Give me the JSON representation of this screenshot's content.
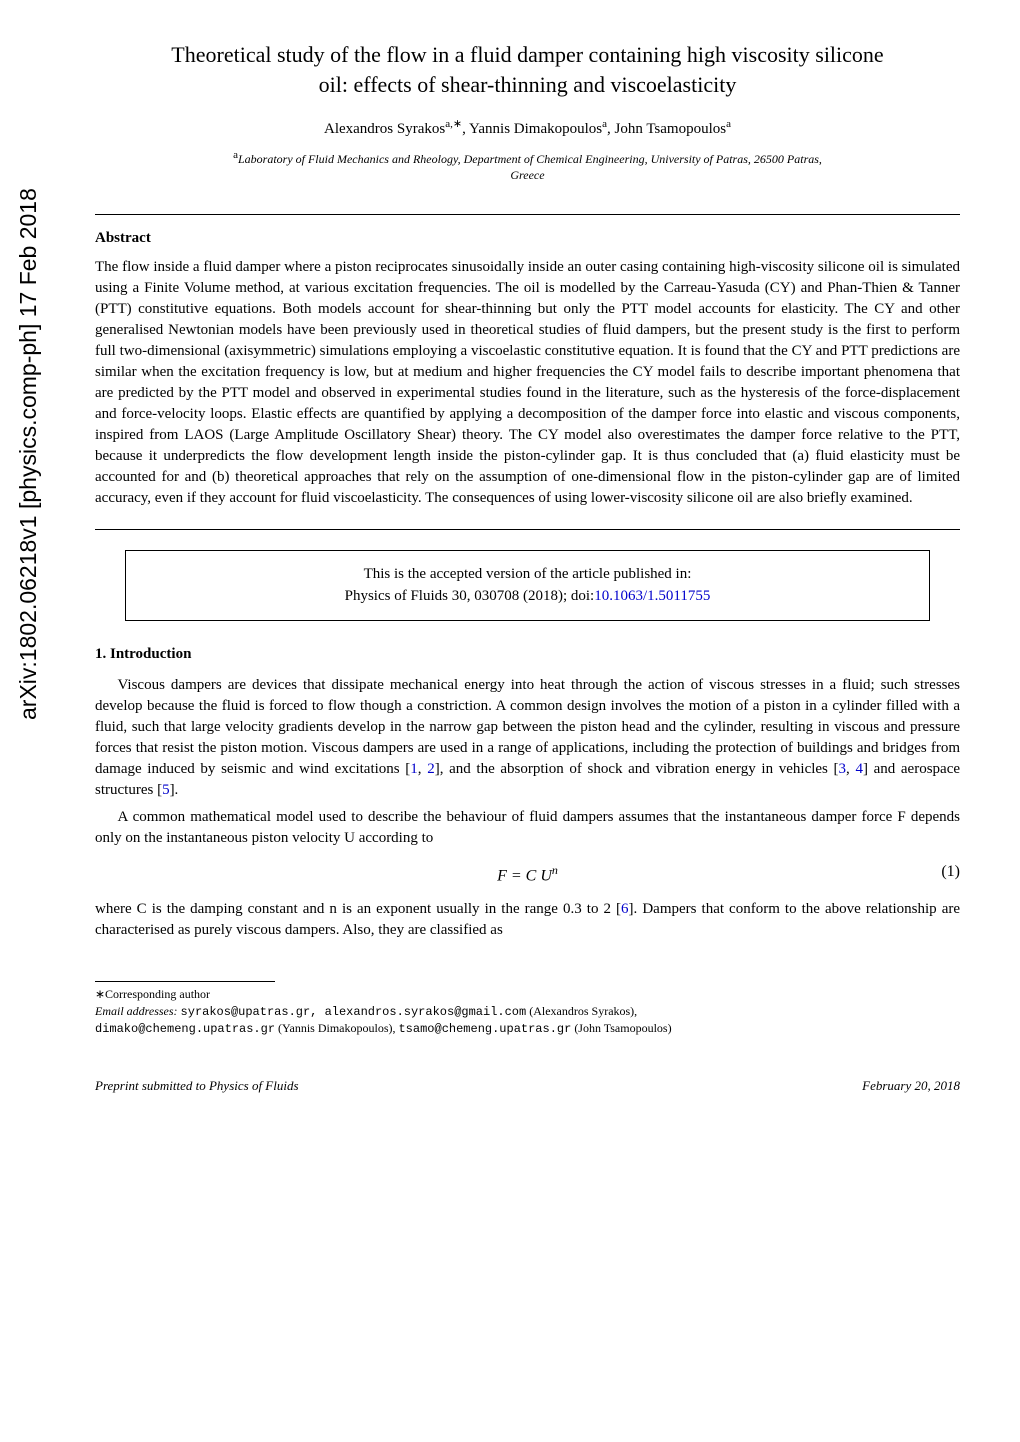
{
  "arxiv_stamp": "arXiv:1802.06218v1  [physics.comp-ph]  17 Feb 2018",
  "title_line1": "Theoretical study of the flow in a fluid damper containing high viscosity silicone",
  "title_line2": "oil: effects of shear-thinning and viscoelasticity",
  "authors": {
    "a1_name": "Alexandros Syrakos",
    "a1_sup": "a,∗",
    "sep1": ", ",
    "a2_name": "Yannis Dimakopoulos",
    "a2_sup": "a",
    "sep2": ", ",
    "a3_name": "John Tsamopoulos",
    "a3_sup": "a"
  },
  "affiliation": {
    "sup": "a",
    "text_line1": "Laboratory of Fluid Mechanics and Rheology, Department of Chemical Engineering, University of Patras, 26500 Patras,",
    "text_line2": "Greece"
  },
  "abstract": {
    "heading": "Abstract",
    "text": "The flow inside a fluid damper where a piston reciprocates sinusoidally inside an outer casing containing high-viscosity silicone oil is simulated using a Finite Volume method, at various excitation frequencies. The oil is modelled by the Carreau-Yasuda (CY) and Phan-Thien & Tanner (PTT) constitutive equations. Both models account for shear-thinning but only the PTT model accounts for elasticity. The CY and other generalised Newtonian models have been previously used in theoretical studies of fluid dampers, but the present study is the first to perform full two-dimensional (axisymmetric) simulations employing a viscoelastic constitutive equation. It is found that the CY and PTT predictions are similar when the excitation frequency is low, but at medium and higher frequencies the CY model fails to describe important phenomena that are predicted by the PTT model and observed in experimental studies found in the literature, such as the hysteresis of the force-displacement and force-velocity loops. Elastic effects are quantified by applying a decomposition of the damper force into elastic and viscous components, inspired from LAOS (Large Amplitude Oscillatory Shear) theory. The CY model also overestimates the damper force relative to the PTT, because it underpredicts the flow development length inside the piston-cylinder gap. It is thus concluded that (a) fluid elasticity must be accounted for and (b) theoretical approaches that rely on the assumption of one-dimensional flow in the piston-cylinder gap are of limited accuracy, even if they account for fluid viscoelasticity. The consequences of using lower-viscosity silicone oil are also briefly examined."
  },
  "boxed": {
    "line1": "This is the accepted version of the article published in:",
    "line2_pre": "Physics of Fluids 30, 030708 (2018); doi:",
    "doi": "10.1063/1.5011755"
  },
  "section1_heading": "1. Introduction",
  "para1": {
    "pre": "Viscous dampers are devices that dissipate mechanical energy into heat through the action of viscous stresses in a fluid; such stresses develop because the fluid is forced to flow though a constriction. A common design involves the motion of a piston in a cylinder filled with a fluid, such that large velocity gradients develop in the narrow gap between the piston head and the cylinder, resulting in viscous and pressure forces that resist the piston motion. Viscous dampers are used in a range of applications, including the protection of buildings and bridges from damage induced by seismic and wind excitations [",
    "ref1": "1",
    "mid1": ", ",
    "ref2": "2",
    "mid2": "], and the absorption of shock and vibration energy in vehicles [",
    "ref3": "3",
    "mid3": ", ",
    "ref4": "4",
    "mid4": "] and aerospace structures [",
    "ref5": "5",
    "post": "]."
  },
  "para2": "A common mathematical model used to describe the behaviour of fluid dampers assumes that the instantaneous damper force F depends only on the instantaneous piston velocity U according to",
  "equation1": {
    "text": "F  =  C U",
    "exp": "n",
    "num": "(1)"
  },
  "para3": {
    "pre": "where C is the damping constant and n is an exponent usually in the range 0.3 to 2 [",
    "ref6": "6",
    "post": "]. Dampers that conform to the above relationship are characterised as purely viscous dampers. Also, they are classified as"
  },
  "footnotes": {
    "corr": "∗Corresponding author",
    "email_label": "Email addresses: ",
    "email1": "syrakos@upatras.gr, alexandros.syrakos@gmail.com",
    "email1_name": " (Alexandros Syrakos),",
    "email2": "dimako@chemeng.upatras.gr",
    "email2_name": " (Yannis Dimakopoulos), ",
    "email3": "tsamo@chemeng.upatras.gr",
    "email3_name": " (John Tsamopoulos)"
  },
  "footer": {
    "left": "Preprint submitted to Physics of Fluids",
    "right": "February 20, 2018"
  },
  "colors": {
    "text": "#000000",
    "link": "#0000cc",
    "background": "#ffffff"
  }
}
